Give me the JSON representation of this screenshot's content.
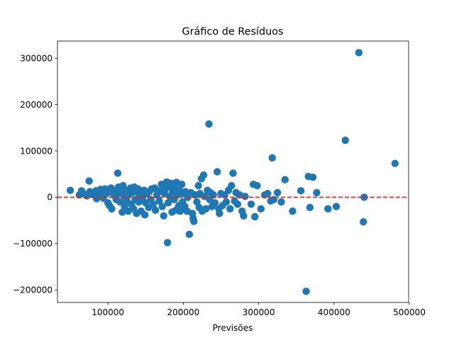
{
  "chart_data": {
    "type": "scatter",
    "title": "Gráfico de Resíduos",
    "xlabel": "Previsões",
    "ylabel": "",
    "xlim": [
      33000,
      499000
    ],
    "ylim": [
      -227000,
      337000
    ],
    "xticks": [
      100000,
      200000,
      300000,
      400000,
      500000
    ],
    "yticks": [
      -200000,
      -100000,
      0,
      100000,
      200000,
      300000
    ],
    "grid": false,
    "reference_line": {
      "y": 0,
      "style": "dashed",
      "color": "#d62728"
    },
    "point_color": "#1f77b4",
    "points": [
      [
        50000,
        15000
      ],
      [
        62000,
        5000
      ],
      [
        65000,
        14000
      ],
      [
        68000,
        8000
      ],
      [
        72000,
        3000
      ],
      [
        75000,
        35000
      ],
      [
        76000,
        12000
      ],
      [
        78000,
        10000
      ],
      [
        80000,
        6000
      ],
      [
        82000,
        9000
      ],
      [
        84000,
        14000
      ],
      [
        85000,
        -3000
      ],
      [
        87000,
        10000
      ],
      [
        88000,
        3000
      ],
      [
        90000,
        17000
      ],
      [
        92000,
        5000
      ],
      [
        94000,
        -2000
      ],
      [
        95000,
        12000
      ],
      [
        96000,
        18000
      ],
      [
        98000,
        8000
      ],
      [
        100000,
        -12000
      ],
      [
        101000,
        15000
      ],
      [
        102000,
        -18000
      ],
      [
        104000,
        20000
      ],
      [
        105000,
        -25000
      ],
      [
        106000,
        10000
      ],
      [
        108000,
        5000
      ],
      [
        110000,
        15000
      ],
      [
        111000,
        -5000
      ],
      [
        113000,
        52000
      ],
      [
        114000,
        22000
      ],
      [
        115000,
        8000
      ],
      [
        116000,
        -10000
      ],
      [
        118000,
        18000
      ],
      [
        119000,
        -32000
      ],
      [
        120000,
        25000
      ],
      [
        121000,
        3000
      ],
      [
        122000,
        -20000
      ],
      [
        124000,
        12000
      ],
      [
        125000,
        -8000
      ],
      [
        126000,
        15000
      ],
      [
        127000,
        -30000
      ],
      [
        128000,
        6000
      ],
      [
        130000,
        20000
      ],
      [
        131000,
        -15000
      ],
      [
        132000,
        10000
      ],
      [
        134000,
        -25000
      ],
      [
        135000,
        22000
      ],
      [
        136000,
        -5000
      ],
      [
        137000,
        12000
      ],
      [
        138000,
        -35000
      ],
      [
        140000,
        18000
      ],
      [
        141000,
        -10000
      ],
      [
        142000,
        5000
      ],
      [
        144000,
        -30000
      ],
      [
        145000,
        10000
      ],
      [
        146000,
        -2000
      ],
      [
        148000,
        15000
      ],
      [
        149000,
        -38000
      ],
      [
        150000,
        -12000
      ],
      [
        152000,
        8000
      ],
      [
        154000,
        -22000
      ],
      [
        155000,
        12000
      ],
      [
        157000,
        -5000
      ],
      [
        158000,
        18000
      ],
      [
        160000,
        -15000
      ],
      [
        162000,
        20000
      ],
      [
        163000,
        -28000
      ],
      [
        165000,
        5000
      ],
      [
        166000,
        10000
      ],
      [
        168000,
        -8000
      ],
      [
        170000,
        15000
      ],
      [
        171000,
        28000
      ],
      [
        172000,
        -20000
      ],
      [
        174000,
        -40000
      ],
      [
        175000,
        8000
      ],
      [
        176000,
        18000
      ],
      [
        178000,
        33000
      ],
      [
        179000,
        -98000
      ],
      [
        180000,
        -12000
      ],
      [
        181000,
        22000
      ],
      [
        182000,
        2000
      ],
      [
        184000,
        30000
      ],
      [
        185000,
        -32000
      ],
      [
        186000,
        12000
      ],
      [
        188000,
        -5000
      ],
      [
        189000,
        20000
      ],
      [
        190000,
        -28000
      ],
      [
        191000,
        32000
      ],
      [
        192000,
        5000
      ],
      [
        194000,
        -18000
      ],
      [
        195000,
        15000
      ],
      [
        196000,
        -30000
      ],
      [
        198000,
        28000
      ],
      [
        199000,
        -10000
      ],
      [
        200000,
        8000
      ],
      [
        202000,
        -20000
      ],
      [
        203000,
        12000
      ],
      [
        205000,
        -30000
      ],
      [
        206000,
        0
      ],
      [
        208000,
        -80000
      ],
      [
        210000,
        10000
      ],
      [
        212000,
        -35000
      ],
      [
        213000,
        -45000
      ],
      [
        214000,
        -52000
      ],
      [
        216000,
        5000
      ],
      [
        218000,
        -10000
      ],
      [
        220000,
        25000
      ],
      [
        221000,
        -22000
      ],
      [
        222000,
        8000
      ],
      [
        224000,
        40000
      ],
      [
        225000,
        -30000
      ],
      [
        227000,
        48000
      ],
      [
        228000,
        2000
      ],
      [
        230000,
        -25000
      ],
      [
        232000,
        15000
      ],
      [
        234000,
        158000
      ],
      [
        235000,
        -5000
      ],
      [
        236000,
        10000
      ],
      [
        238000,
        -20000
      ],
      [
        240000,
        5000
      ],
      [
        242000,
        -12000
      ],
      [
        245000,
        55000
      ],
      [
        247000,
        -25000
      ],
      [
        248000,
        -35000
      ],
      [
        250000,
        8000
      ],
      [
        252000,
        -18000
      ],
      [
        255000,
        5000
      ],
      [
        257000,
        -10000
      ],
      [
        260000,
        15000
      ],
      [
        262000,
        -25000
      ],
      [
        264000,
        25000
      ],
      [
        266000,
        52000
      ],
      [
        268000,
        -8000
      ],
      [
        270000,
        10000
      ],
      [
        272000,
        -15000
      ],
      [
        275000,
        5000
      ],
      [
        278000,
        -30000
      ],
      [
        280000,
        -40000
      ],
      [
        282000,
        2000
      ],
      [
        290000,
        -15000
      ],
      [
        293000,
        28000
      ],
      [
        295000,
        -42000
      ],
      [
        298000,
        25000
      ],
      [
        303000,
        -25000
      ],
      [
        308000,
        5000
      ],
      [
        312000,
        8000
      ],
      [
        316000,
        -8000
      ],
      [
        318000,
        85000
      ],
      [
        320000,
        -5000
      ],
      [
        325000,
        10000
      ],
      [
        330000,
        -10000
      ],
      [
        335000,
        38000
      ],
      [
        345000,
        -30000
      ],
      [
        356000,
        14000
      ],
      [
        363000,
        -203000
      ],
      [
        366000,
        45000
      ],
      [
        368000,
        -22000
      ],
      [
        372000,
        43000
      ],
      [
        377000,
        10000
      ],
      [
        392000,
        -25000
      ],
      [
        403000,
        -20000
      ],
      [
        415000,
        123000
      ],
      [
        433000,
        312000
      ],
      [
        439000,
        -53000
      ],
      [
        440000,
        0
      ],
      [
        481000,
        73000
      ]
    ]
  }
}
